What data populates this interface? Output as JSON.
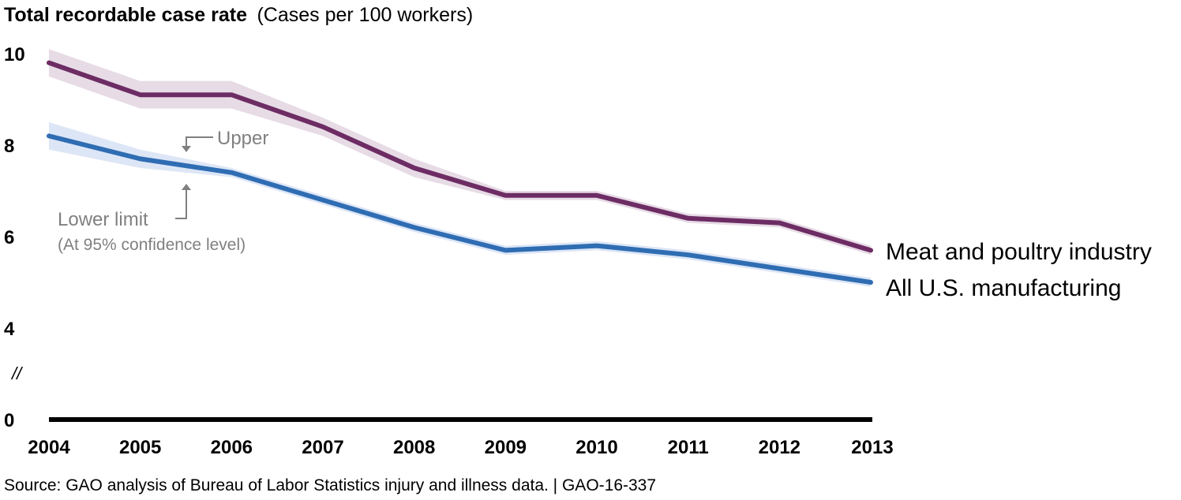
{
  "chart_data": {
    "type": "line",
    "title": "Total recordable case rate",
    "subtitle": "(Cases per 100 workers)",
    "x": [
      "2004",
      "2005",
      "2006",
      "2007",
      "2008",
      "2009",
      "2010",
      "2011",
      "2012",
      "2013"
    ],
    "yticks": [
      "0",
      "4",
      "6",
      "8",
      "10"
    ],
    "axis_break_symbol": "//",
    "ylim": [
      0,
      10
    ],
    "axis_break": [
      0,
      4
    ],
    "grid": false,
    "series": [
      {
        "name": "Meat and poultry industry",
        "values": [
          9.8,
          9.1,
          9.1,
          8.4,
          7.5,
          6.9,
          6.9,
          6.4,
          6.3,
          5.7
        ],
        "upper": [
          10.1,
          9.4,
          9.4,
          8.6,
          7.7,
          7.0,
          7.0,
          6.5,
          6.4,
          5.8
        ],
        "lower": [
          9.5,
          8.8,
          8.8,
          8.2,
          7.3,
          6.8,
          6.8,
          6.3,
          6.2,
          5.6
        ],
        "color": "#6d2c64",
        "band_color": "#e7dbe6"
      },
      {
        "name": "All U.S. manufacturing",
        "values": [
          8.2,
          7.7,
          7.4,
          6.8,
          6.2,
          5.7,
          5.8,
          5.6,
          5.3,
          5.0
        ],
        "upper": [
          8.5,
          7.9,
          7.5,
          6.9,
          6.3,
          5.8,
          5.9,
          5.7,
          5.4,
          5.1
        ],
        "lower": [
          7.9,
          7.5,
          7.3,
          6.7,
          6.1,
          5.6,
          5.7,
          5.5,
          5.2,
          4.9
        ],
        "color": "#2f6db3",
        "band_color": "#dde6f6"
      }
    ],
    "annotations": {
      "upper": "Upper",
      "lower": "Lower limit",
      "confidence": "(At 95% confidence level)"
    },
    "source": "Source: GAO analysis of Bureau of Labor Statistics injury and illness data.  |  GAO-16-337"
  }
}
